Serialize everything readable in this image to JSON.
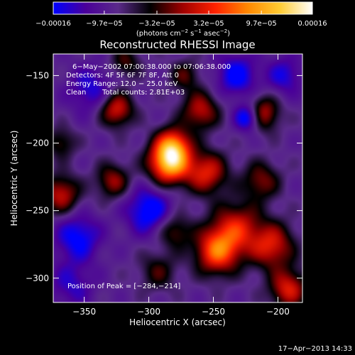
{
  "colorbar": {
    "tick_labels": [
      "−0.00016",
      "−9.7e−05",
      "−3.2e−05",
      "3.2e−05",
      "9.7e−05",
      "0.00016"
    ],
    "tick_values": [
      -0.00016,
      -9.7e-05,
      -3.2e-05,
      3.2e-05,
      9.7e-05,
      0.00016
    ],
    "range": [
      -0.00016,
      0.00016
    ],
    "units_parts": [
      "(photons cm",
      "−2",
      " s",
      "−1",
      " asec",
      "−2",
      ")"
    ],
    "stops": [
      "#0000ff",
      "#4a0099",
      "#5a2a8a",
      "#000000",
      "#a00000",
      "#ff2200",
      "#ff8800",
      "#ffcc33",
      "#ffffff"
    ]
  },
  "chart_data": {
    "type": "heatmap",
    "title": "Reconstructed RHESSI Image",
    "xlabel": "Heliocentric X (arcsec)",
    "ylabel": "Heliocentric Y (arcsec)",
    "xlim": [
      -374,
      -181
    ],
    "ylim": [
      -318,
      -134
    ],
    "x_ticks": [
      -350,
      -300,
      -250,
      -200
    ],
    "x_tick_labels": [
      "−350",
      "−300",
      "−250",
      "−200"
    ],
    "y_ticks": [
      -150,
      -200,
      -250,
      -300
    ],
    "y_tick_labels": [
      "−150",
      "−200",
      "−250",
      "−300"
    ],
    "annotations": {
      "time_range": "6−May−2002 07:00:38.000 to 07:06:38.000",
      "detectors": "Detectors: 4F 5F 6F 7F 8F, Att 0",
      "energy": "Energy Range: 12.0 − 25.0 keV",
      "method": "Clean",
      "counts": "Total counts: 2.81E+03",
      "peak": "Position of Peak = [−284,−214]"
    },
    "peak_position": [
      -284,
      -214
    ],
    "sources": [
      {
        "x": -284,
        "y": -214,
        "amp": 1.0,
        "s": 11
      },
      {
        "x": -281,
        "y": -201,
        "amp": 0.55,
        "s": 9
      },
      {
        "x": -325,
        "y": -175,
        "amp": 0.55,
        "s": 9
      },
      {
        "x": -328,
        "y": -228,
        "amp": 0.42,
        "s": 9
      },
      {
        "x": -260,
        "y": -176,
        "amp": 0.48,
        "s": 10
      },
      {
        "x": -255,
        "y": -222,
        "amp": 0.55,
        "s": 11
      },
      {
        "x": -212,
        "y": -178,
        "amp": 0.52,
        "s": 9
      },
      {
        "x": -247,
        "y": -280,
        "amp": 0.72,
        "s": 12
      },
      {
        "x": -232,
        "y": -262,
        "amp": 0.5,
        "s": 13
      },
      {
        "x": -205,
        "y": -276,
        "amp": 0.55,
        "s": 12
      },
      {
        "x": -213,
        "y": -228,
        "amp": 0.38,
        "s": 10
      },
      {
        "x": -368,
        "y": -238,
        "amp": 0.5,
        "s": 10
      },
      {
        "x": -368,
        "y": -200,
        "amp": 0.3,
        "s": 8
      },
      {
        "x": -280,
        "y": -265,
        "amp": 0.35,
        "s": 9
      },
      {
        "x": -293,
        "y": -295,
        "amp": 0.28,
        "s": 10
      },
      {
        "x": -192,
        "y": -308,
        "amp": 0.55,
        "s": 10
      },
      {
        "x": -318,
        "y": -140,
        "amp": 0.3,
        "s": 8
      },
      {
        "x": -272,
        "y": -150,
        "amp": 0.3,
        "s": 8
      },
      {
        "x": -300,
        "y": -250,
        "amp": -0.45,
        "s": 12
      },
      {
        "x": -355,
        "y": -270,
        "amp": -0.4,
        "s": 12
      },
      {
        "x": -345,
        "y": -160,
        "amp": -0.3,
        "s": 12
      },
      {
        "x": -232,
        "y": -150,
        "amp": -0.4,
        "s": 11
      },
      {
        "x": -223,
        "y": -181,
        "amp": -0.55,
        "s": 7
      },
      {
        "x": -360,
        "y": -305,
        "amp": -0.25,
        "s": 12
      },
      {
        "x": -195,
        "y": -150,
        "amp": -0.3,
        "s": 10
      }
    ]
  },
  "timestamp": "17−Apr−2013 14:33"
}
